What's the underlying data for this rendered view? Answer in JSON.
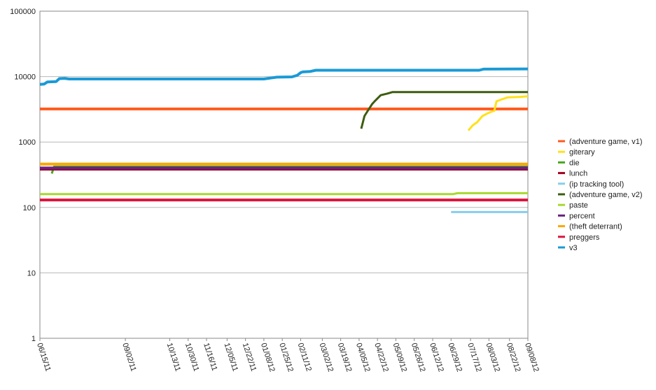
{
  "chart_data": {
    "type": "line",
    "title": "",
    "xlabel": "",
    "ylabel": "",
    "y_scale": "log",
    "ylim": [
      1,
      100000
    ],
    "y_ticks": [
      1,
      10,
      100,
      1000,
      10000,
      100000
    ],
    "y_tick_labels": [
      "1",
      "10",
      "100",
      "1000",
      "10000",
      "100000"
    ],
    "xlim": [
      "2011-06-15",
      "2012-09-08"
    ],
    "x_ticks": [
      "2011-06-15",
      "2011-09-02",
      "2011-10-13",
      "2011-10-30",
      "2011-11-16",
      "2011-12-05",
      "2011-12-22",
      "2012-01-08",
      "2012-01-25",
      "2012-02-11",
      "2012-03-02",
      "2012-03-19",
      "2012-04-05",
      "2012-04-22",
      "2012-05-09",
      "2012-05-26",
      "2012-06-12",
      "2012-06-29",
      "2012-07-17",
      "2012-08-03",
      "2012-08-22",
      "2012-09-08"
    ],
    "x_tick_labels": [
      "06/15/11",
      "09/02/11",
      "10/13/11",
      "10/30/11",
      "11/16/11",
      "12/05/11",
      "12/22/11",
      "01/08/12",
      "01/25/12",
      "02/11/12",
      "03/02/12",
      "03/19/12",
      "04/05/12",
      "04/22/12",
      "05/09/12",
      "05/26/12",
      "06/12/12",
      "06/29/12",
      "07/17/12",
      "08/03/12",
      "08/22/12",
      "09/08/12"
    ],
    "grid": {
      "horizontal": true,
      "vertical": false
    },
    "legend_position": "right",
    "series": [
      {
        "name": "(adventure game, v1)",
        "color": "#ff5a1e",
        "width": 4,
        "points": [
          [
            "2011-06-15",
            3200
          ],
          [
            "2012-09-08",
            3200
          ]
        ]
      },
      {
        "name": "giterary",
        "color": "#ffe119",
        "width": 3,
        "points": [
          [
            "2012-07-15",
            1500
          ],
          [
            "2012-07-19",
            1800
          ],
          [
            "2012-07-23",
            2000
          ],
          [
            "2012-07-28",
            2500
          ],
          [
            "2012-08-01",
            2700
          ],
          [
            "2012-08-05",
            2900
          ],
          [
            "2012-08-08",
            3000
          ],
          [
            "2012-08-10",
            4200
          ],
          [
            "2012-08-15",
            4500
          ],
          [
            "2012-08-20",
            4800
          ],
          [
            "2012-09-01",
            4900
          ],
          [
            "2012-09-08",
            5000
          ]
        ]
      },
      {
        "name": "die",
        "color": "#47a81f",
        "width": 3,
        "points": [
          [
            "2011-06-26",
            330
          ],
          [
            "2011-06-28",
            420
          ],
          [
            "2012-09-08",
            420
          ]
        ]
      },
      {
        "name": "lunch",
        "color": "#a50021",
        "width": 4,
        "points": [
          [
            "2011-06-15",
            385
          ],
          [
            "2012-09-08",
            385
          ]
        ]
      },
      {
        "name": "(ip tracking tool)",
        "color": "#87ceeb",
        "width": 3,
        "points": [
          [
            "2012-06-29",
            85
          ],
          [
            "2012-09-08",
            85
          ]
        ]
      },
      {
        "name": "(adventure game, v2)",
        "color": "#3d5c10",
        "width": 3,
        "points": [
          [
            "2012-04-07",
            1600
          ],
          [
            "2012-04-10",
            2500
          ],
          [
            "2012-04-13",
            3000
          ],
          [
            "2012-04-17",
            3800
          ],
          [
            "2012-04-20",
            4300
          ],
          [
            "2012-04-25",
            5200
          ],
          [
            "2012-05-01",
            5500
          ],
          [
            "2012-05-06",
            5800
          ],
          [
            "2012-09-08",
            5800
          ]
        ]
      },
      {
        "name": "paste",
        "color": "#a8d82c",
        "width": 3,
        "points": [
          [
            "2011-06-15",
            160
          ],
          [
            "2012-07-01",
            160
          ],
          [
            "2012-07-05",
            165
          ],
          [
            "2012-09-08",
            165
          ]
        ]
      },
      {
        "name": "percent",
        "color": "#6a2280",
        "width": 4,
        "points": [
          [
            "2011-06-15",
            400
          ],
          [
            "2012-09-08",
            400
          ]
        ]
      },
      {
        "name": "(theft deterrant)",
        "color": "#ffa500",
        "width": 4,
        "points": [
          [
            "2011-06-15",
            460
          ],
          [
            "2012-09-08",
            460
          ]
        ]
      },
      {
        "name": "preggers",
        "color": "#dc143c",
        "width": 4,
        "points": [
          [
            "2011-06-15",
            130
          ],
          [
            "2012-09-08",
            130
          ]
        ]
      },
      {
        "name": "v3",
        "color": "#1a9ad6",
        "width": 4,
        "points": [
          [
            "2011-06-15",
            7600
          ],
          [
            "2011-06-19",
            7700
          ],
          [
            "2011-06-22",
            8300
          ],
          [
            "2011-06-30",
            8400
          ],
          [
            "2011-07-03",
            9300
          ],
          [
            "2011-07-08",
            9400
          ],
          [
            "2011-07-12",
            9200
          ],
          [
            "2012-01-08",
            9200
          ],
          [
            "2012-01-14",
            9500
          ],
          [
            "2012-01-20",
            9800
          ],
          [
            "2012-02-03",
            9900
          ],
          [
            "2012-02-08",
            10500
          ],
          [
            "2012-02-11",
            11500
          ],
          [
            "2012-02-13",
            11800
          ],
          [
            "2012-02-20",
            12000
          ],
          [
            "2012-02-25",
            12500
          ],
          [
            "2012-07-25",
            12500
          ],
          [
            "2012-07-29",
            13000
          ],
          [
            "2012-09-08",
            13100
          ]
        ]
      }
    ]
  }
}
